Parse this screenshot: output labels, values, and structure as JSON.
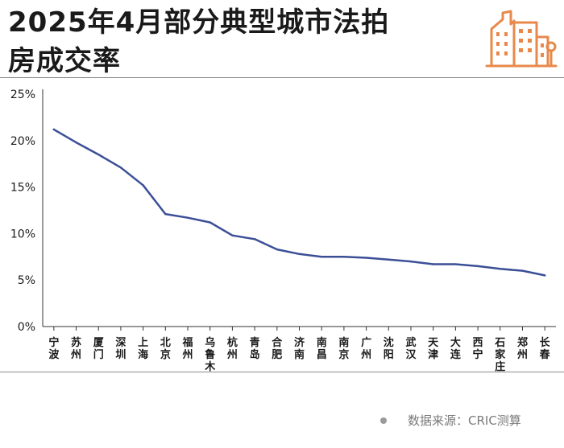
{
  "header": {
    "title_line1": "2025年4月部分典型城市法拍",
    "title_line2": "房成交率",
    "logo_icon": "city-buildings-icon",
    "accent_color": "#e8894b"
  },
  "footer": {
    "source": "数据来源：CRIC测算"
  },
  "chart_data": {
    "type": "line",
    "title": "",
    "xlabel": "",
    "ylabel": "",
    "ylim": [
      0,
      25
    ],
    "yticks": [
      "0%",
      "5%",
      "10%",
      "15%",
      "20%",
      "25%"
    ],
    "grid": false,
    "line_color": "#3b4f96",
    "categories": [
      "宁波",
      "苏州",
      "厦门",
      "深圳",
      "上海",
      "北京",
      "福州",
      "乌鲁木齐",
      "杭州",
      "青岛",
      "合肥",
      "济南",
      "南昌",
      "南京",
      "广州",
      "沈阳",
      "武汉",
      "天津",
      "大连",
      "西宁",
      "石家庄",
      "郑州",
      "长春"
    ],
    "series": [
      {
        "values": [
          21.2,
          19.8,
          18.5,
          17.1,
          15.2,
          12.1,
          11.7,
          11.2,
          9.8,
          9.4,
          8.3,
          7.8,
          7.5,
          7.5,
          7.4,
          7.2,
          7.0,
          6.7,
          6.7,
          6.5,
          6.2,
          6.0,
          5.5
        ]
      }
    ]
  }
}
